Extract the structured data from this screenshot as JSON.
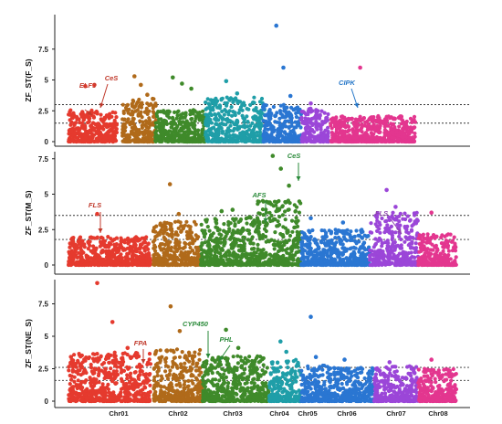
{
  "chart_data": [
    {
      "type": "scatter",
      "panel": "top",
      "ylabel": "ZF_ST(F_S)",
      "yticks": [
        0,
        2.5,
        5,
        7.5
      ],
      "ylim": [
        0,
        10
      ],
      "thresholds": [
        1.5,
        3.0
      ],
      "chromosomes": [
        {
          "name": "Chr01",
          "color": "#e53a2e",
          "peak": 2.6,
          "outliers": [
            4.5,
            4.6
          ]
        },
        {
          "name": "Chr02",
          "color": "#b06a1a",
          "peak": 3.5,
          "outliers": [
            5.3,
            4.6,
            3.8
          ]
        },
        {
          "name": "Chr03",
          "color": "#3f8a2a",
          "peak": 2.6,
          "outliers": [
            5.2,
            4.7,
            4.3
          ]
        },
        {
          "name": "Chr04",
          "color": "#1f9ea8",
          "peak": 3.6,
          "outliers": [
            4.9,
            3.9
          ]
        },
        {
          "name": "Chr05",
          "color": "#2a76d2",
          "peak": 3.0,
          "outliers": [
            9.4,
            6.0,
            3.7
          ]
        },
        {
          "name": "Chr06",
          "color": "#9b46d8",
          "peak": 2.7,
          "outliers": [
            3.1
          ]
        },
        {
          "name": "Chr07",
          "color": "#e3368f",
          "peak": 2.1,
          "outliers": [
            6.0
          ]
        }
      ],
      "annotations": [
        {
          "text": "ELF3",
          "color": "#c0392b"
        },
        {
          "text": "CeS",
          "color": "#c0392b"
        },
        {
          "text": "CIPK",
          "color": "#2476c8"
        }
      ]
    },
    {
      "type": "scatter",
      "panel": "middle",
      "ylabel": "ZF_ST(M_S)",
      "yticks": [
        0,
        2.5,
        5,
        7.5
      ],
      "ylim": [
        0,
        8.5
      ],
      "thresholds": [
        1.8,
        3.5
      ],
      "chromosomes": [
        {
          "name": "Chr01",
          "color": "#e53a2e",
          "peak": 2.0,
          "outliers": [
            3.6
          ]
        },
        {
          "name": "Chr02",
          "color": "#b06a1a",
          "peak": 3.1,
          "outliers": [
            5.7,
            3.6
          ]
        },
        {
          "name": "Chr03",
          "color": "#3f8a2a",
          "peak": 3.4,
          "outliers": [
            3.8,
            3.9
          ]
        },
        {
          "name": "Chr04",
          "color": "#3f8a2a",
          "peak": 4.6,
          "outliers": [
            7.7,
            6.8,
            5.6
          ]
        },
        {
          "name": "Chr05",
          "color": "#2a76d2",
          "peak": 2.5,
          "outliers": [
            3.3
          ]
        },
        {
          "name": "Chr06",
          "color": "#2a76d2",
          "peak": 2.5,
          "outliers": [
            3.0
          ]
        },
        {
          "name": "Chr07",
          "color": "#9b46d8",
          "peak": 3.7,
          "outliers": [
            5.3,
            4.1
          ]
        },
        {
          "name": "Chr08",
          "color": "#e3368f",
          "peak": 2.2,
          "outliers": [
            3.7
          ]
        }
      ],
      "annotations": [
        {
          "text": "FLS",
          "color": "#c0392b"
        },
        {
          "text": "AFS",
          "color": "#2a8a3a"
        },
        {
          "text": "CeS",
          "color": "#2a8a3a"
        },
        {
          "text": "FLS",
          "color": "#8e44ad"
        }
      ]
    },
    {
      "type": "scatter",
      "panel": "bottom",
      "ylabel": "ZF_ST(NE_S)",
      "yticks": [
        0,
        2.5,
        5,
        7.5
      ],
      "ylim": [
        0,
        9.5
      ],
      "thresholds": [
        1.6,
        2.6
      ],
      "chromosomes": [
        {
          "name": "Chr01",
          "color": "#e53a2e",
          "peak": 3.8,
          "outliers": [
            9.1,
            6.1,
            4.1
          ]
        },
        {
          "name": "Chr02",
          "color": "#b06a1a",
          "peak": 4.0,
          "outliers": [
            7.3,
            5.4
          ]
        },
        {
          "name": "Chr03",
          "color": "#3f8a2a",
          "peak": 3.5,
          "outliers": [
            5.5,
            4.1
          ]
        },
        {
          "name": "Chr04",
          "color": "#1f9ea8",
          "peak": 3.2,
          "outliers": [
            4.6,
            3.8
          ]
        },
        {
          "name": "Chr05",
          "color": "#2a76d2",
          "peak": 2.8,
          "outliers": [
            6.5,
            3.4
          ]
        },
        {
          "name": "Chr06",
          "color": "#2a76d2",
          "peak": 2.6,
          "outliers": [
            3.2
          ]
        },
        {
          "name": "Chr07",
          "color": "#9b46d8",
          "peak": 2.7,
          "outliers": [
            3.0
          ]
        },
        {
          "name": "Chr08",
          "color": "#e3368f",
          "peak": 2.5,
          "outliers": [
            3.2
          ]
        }
      ],
      "annotations": [
        {
          "text": "FPA",
          "color": "#c0392b"
        },
        {
          "text": "CYP450",
          "color": "#2a8a3a"
        },
        {
          "text": "PHL",
          "color": "#2a8a3a"
        }
      ]
    }
  ],
  "x_axis_labels": [
    "Chr01",
    "Chr02",
    "Chr03",
    "Chr04",
    "Chr05",
    "Chr06",
    "Chr07",
    "Chr08"
  ]
}
